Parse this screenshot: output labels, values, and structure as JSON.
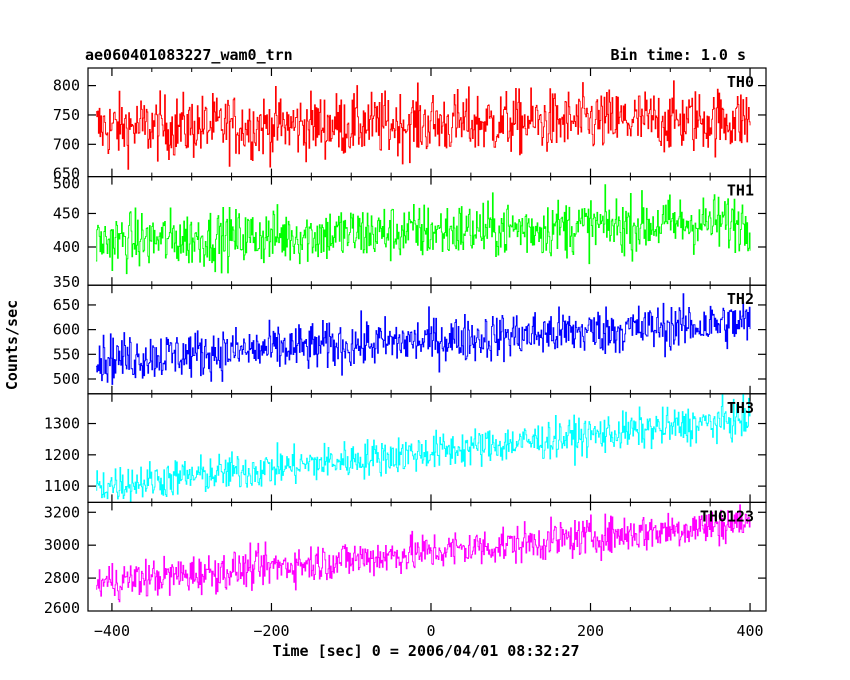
{
  "header": {
    "title": "ae060401083227_wam0_trn",
    "bin_time": "Bin time: 1.0 s"
  },
  "chart_data": {
    "type": "line",
    "title": "ae060401083227_wam0_trn",
    "subtitle": "Bin time: 1.0 s",
    "xlabel": "Time [sec] 0 = 2006/04/01 08:32:27",
    "ylabel": "Counts/sec",
    "xlim": [
      -430,
      420
    ],
    "x_ticks": [
      -400,
      -200,
      0,
      200,
      400
    ],
    "x_tick_labels": [
      "−400",
      "−200",
      "0",
      "200",
      "400"
    ],
    "x_range": [
      -420,
      400
    ],
    "panels": [
      {
        "name": "TH0",
        "color": "#ff0000",
        "ylim": [
          645,
          830
        ],
        "yticks": [
          700,
          750,
          800
        ],
        "ytick_labels": [
          "700",
          "750",
          "800"
        ],
        "bottom_label": "650",
        "trend_start": 728,
        "trend_end": 742,
        "noise_sd": 27
      },
      {
        "name": "TH1",
        "color": "#00ff00",
        "ylim": [
          343,
          505
        ],
        "yticks": [
          400,
          450
        ],
        "ytick_labels": [
          "400",
          "450"
        ],
        "bottom_label": "350",
        "top_label": "500",
        "trend_start": 408,
        "trend_end": 438,
        "noise_sd": 21
      },
      {
        "name": "TH2",
        "color": "#0000ff",
        "ylim": [
          470,
          690
        ],
        "yticks": [
          500,
          550,
          600,
          650
        ],
        "ytick_labels": [
          "500",
          "550",
          "600",
          "650"
        ],
        "trend_start": 540,
        "trend_end": 615,
        "noise_sd": 24
      },
      {
        "name": "TH3",
        "color": "#00ffff",
        "ylim": [
          1048,
          1395
        ],
        "yticks": [
          1100,
          1200,
          1300
        ],
        "ytick_labels": [
          "1100",
          "1200",
          "1300"
        ],
        "trend_start": 1100,
        "trend_end": 1315,
        "noise_sd": 30
      },
      {
        "name": "TH0123",
        "color": "#ff00ff",
        "ylim": [
          2600,
          3260
        ],
        "yticks": [
          2800,
          3000,
          3200
        ],
        "ytick_labels": [
          "2800",
          "3000",
          "3200"
        ],
        "bottom_label": "2600",
        "trend_start": 2770,
        "trend_end": 3140,
        "noise_sd": 58
      }
    ]
  }
}
